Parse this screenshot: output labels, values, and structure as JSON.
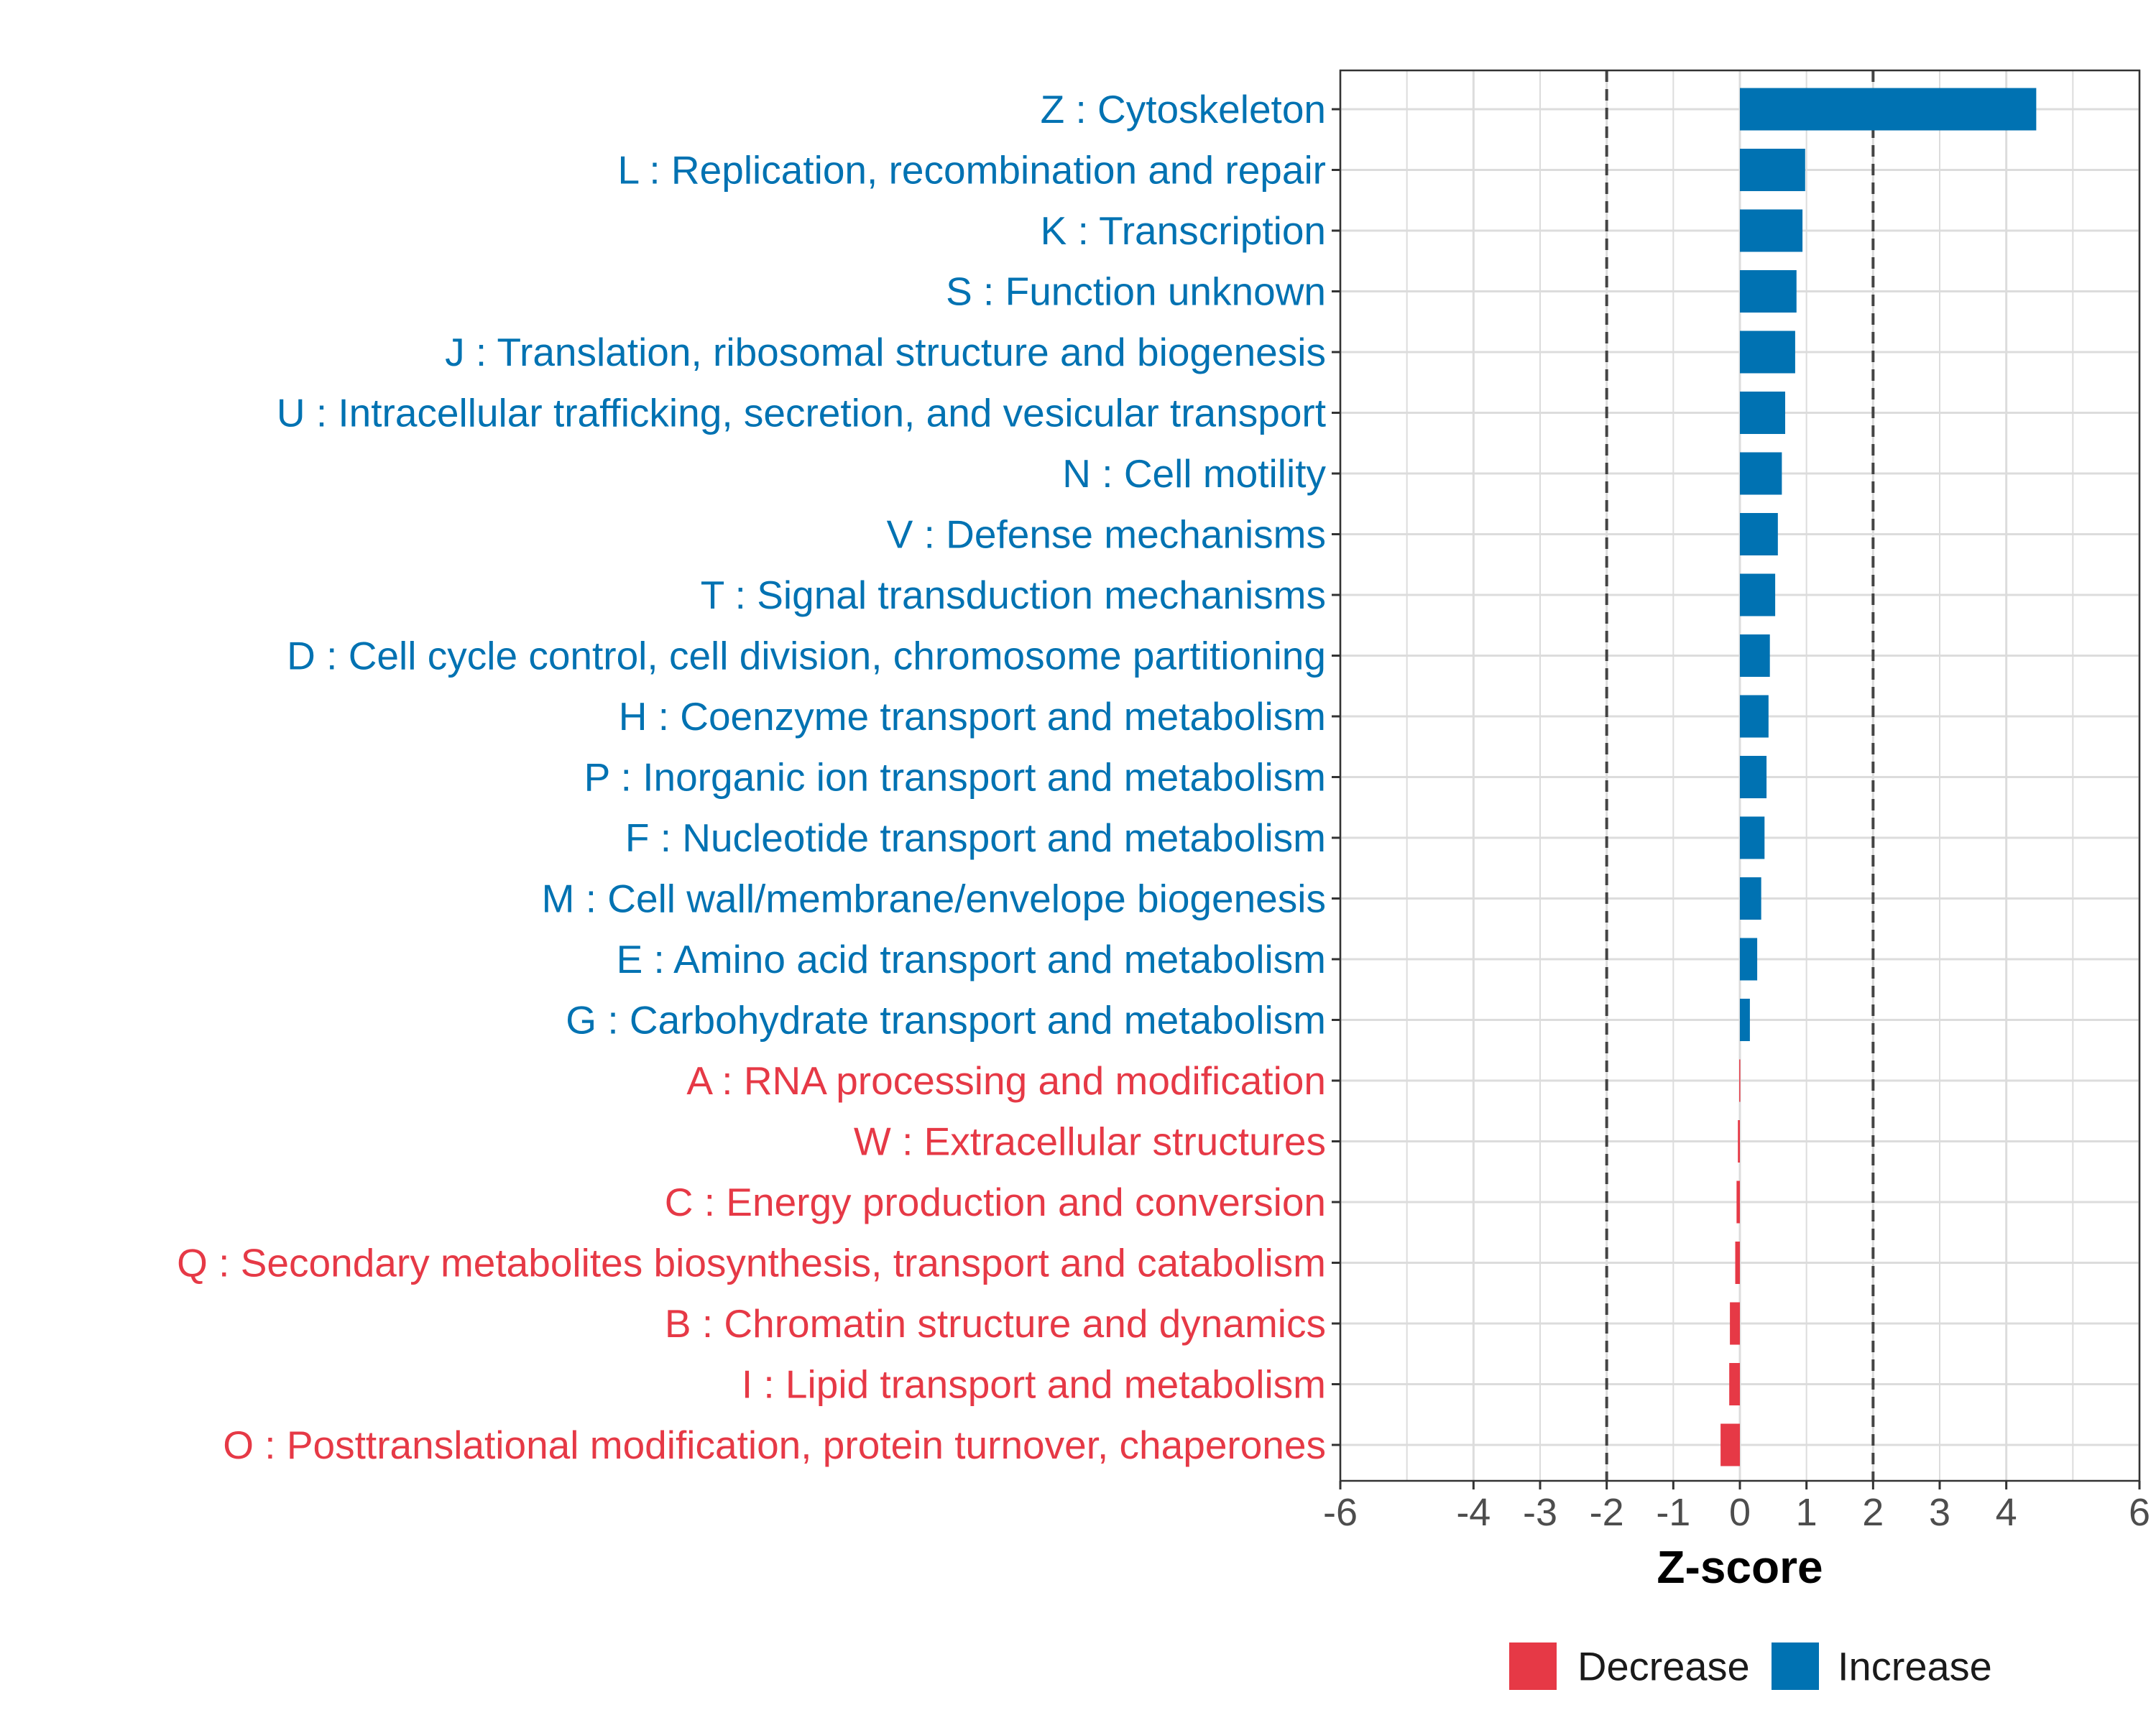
{
  "chart_data": {
    "type": "bar",
    "orientation": "horizontal",
    "xlabel": "Z-score",
    "ylabel": "",
    "xlim": [
      -6,
      6
    ],
    "xticks": [
      -6,
      -4,
      -3,
      -2,
      -1,
      0,
      1,
      2,
      3,
      4,
      6
    ],
    "reference_lines": [
      -2,
      2
    ],
    "grid": true,
    "legend_position": "bottom",
    "colors": {
      "Increase": "#0072b2",
      "Decrease": "#e63946"
    },
    "legend": [
      {
        "label": "Decrease",
        "color": "#e63946"
      },
      {
        "label": "Increase",
        "color": "#0072b2"
      }
    ],
    "categories": [
      "Z : Cytoskeleton",
      "L : Replication, recombination and repair",
      "K : Transcription",
      "S : Function unknown",
      "J : Translation, ribosomal structure and biogenesis",
      "U : Intracellular trafficking, secretion, and vesicular transport",
      "N : Cell motility",
      "V : Defense mechanisms",
      "T : Signal transduction mechanisms",
      "D : Cell cycle control, cell division, chromosome partitioning",
      "H : Coenzyme transport and metabolism",
      "P : Inorganic ion transport and metabolism",
      "F : Nucleotide transport and metabolism",
      "M : Cell wall/membrane/envelope biogenesis",
      "E : Amino acid transport and metabolism",
      "G : Carbohydrate transport and metabolism",
      "A : RNA processing and modification",
      "W : Extracellular structures",
      "C : Energy production and conversion",
      "Q : Secondary metabolites biosynthesis, transport and catabolism",
      "B : Chromatin structure and dynamics",
      "I : Lipid transport and metabolism",
      "O : Posttranslational modification, protein turnover, chaperones"
    ],
    "values": [
      4.45,
      0.98,
      0.94,
      0.85,
      0.83,
      0.68,
      0.63,
      0.57,
      0.53,
      0.45,
      0.43,
      0.4,
      0.37,
      0.32,
      0.26,
      0.15,
      -0.01,
      -0.03,
      -0.05,
      -0.07,
      -0.15,
      -0.16,
      -0.29
    ],
    "groups": [
      "Increase",
      "Increase",
      "Increase",
      "Increase",
      "Increase",
      "Increase",
      "Increase",
      "Increase",
      "Increase",
      "Increase",
      "Increase",
      "Increase",
      "Increase",
      "Increase",
      "Increase",
      "Increase",
      "Decrease",
      "Decrease",
      "Decrease",
      "Decrease",
      "Decrease",
      "Decrease",
      "Decrease"
    ]
  }
}
